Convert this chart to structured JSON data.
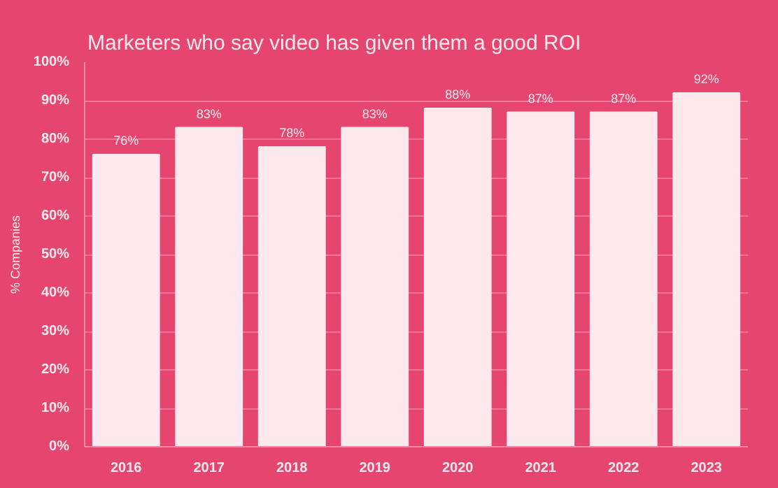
{
  "chart_data": {
    "type": "bar",
    "title": "Marketers who say video has given them a good ROI",
    "ylabel": "% Companies",
    "categories": [
      "2016",
      "2017",
      "2018",
      "2019",
      "2020",
      "2021",
      "2022",
      "2023"
    ],
    "values": [
      76,
      83,
      78,
      83,
      88,
      87,
      87,
      92
    ],
    "value_labels": [
      "76%",
      "83%",
      "78%",
      "83%",
      "88%",
      "87%",
      "87%",
      "92%"
    ],
    "color": "#fde8ee",
    "ylim": [
      0,
      100
    ],
    "yticks": [
      {
        "value": 0,
        "label": "0%"
      },
      {
        "value": 10,
        "label": "10%"
      },
      {
        "value": 20,
        "label": "20%"
      },
      {
        "value": 30,
        "label": "30%"
      },
      {
        "value": 40,
        "label": "40%"
      },
      {
        "value": 50,
        "label": "50%"
      },
      {
        "value": 60,
        "label": "60%"
      },
      {
        "value": 70,
        "label": "70%"
      },
      {
        "value": 80,
        "label": "80%"
      },
      {
        "value": 90,
        "label": "90%"
      },
      {
        "value": 100,
        "label": "100%"
      }
    ],
    "grid": "y"
  }
}
